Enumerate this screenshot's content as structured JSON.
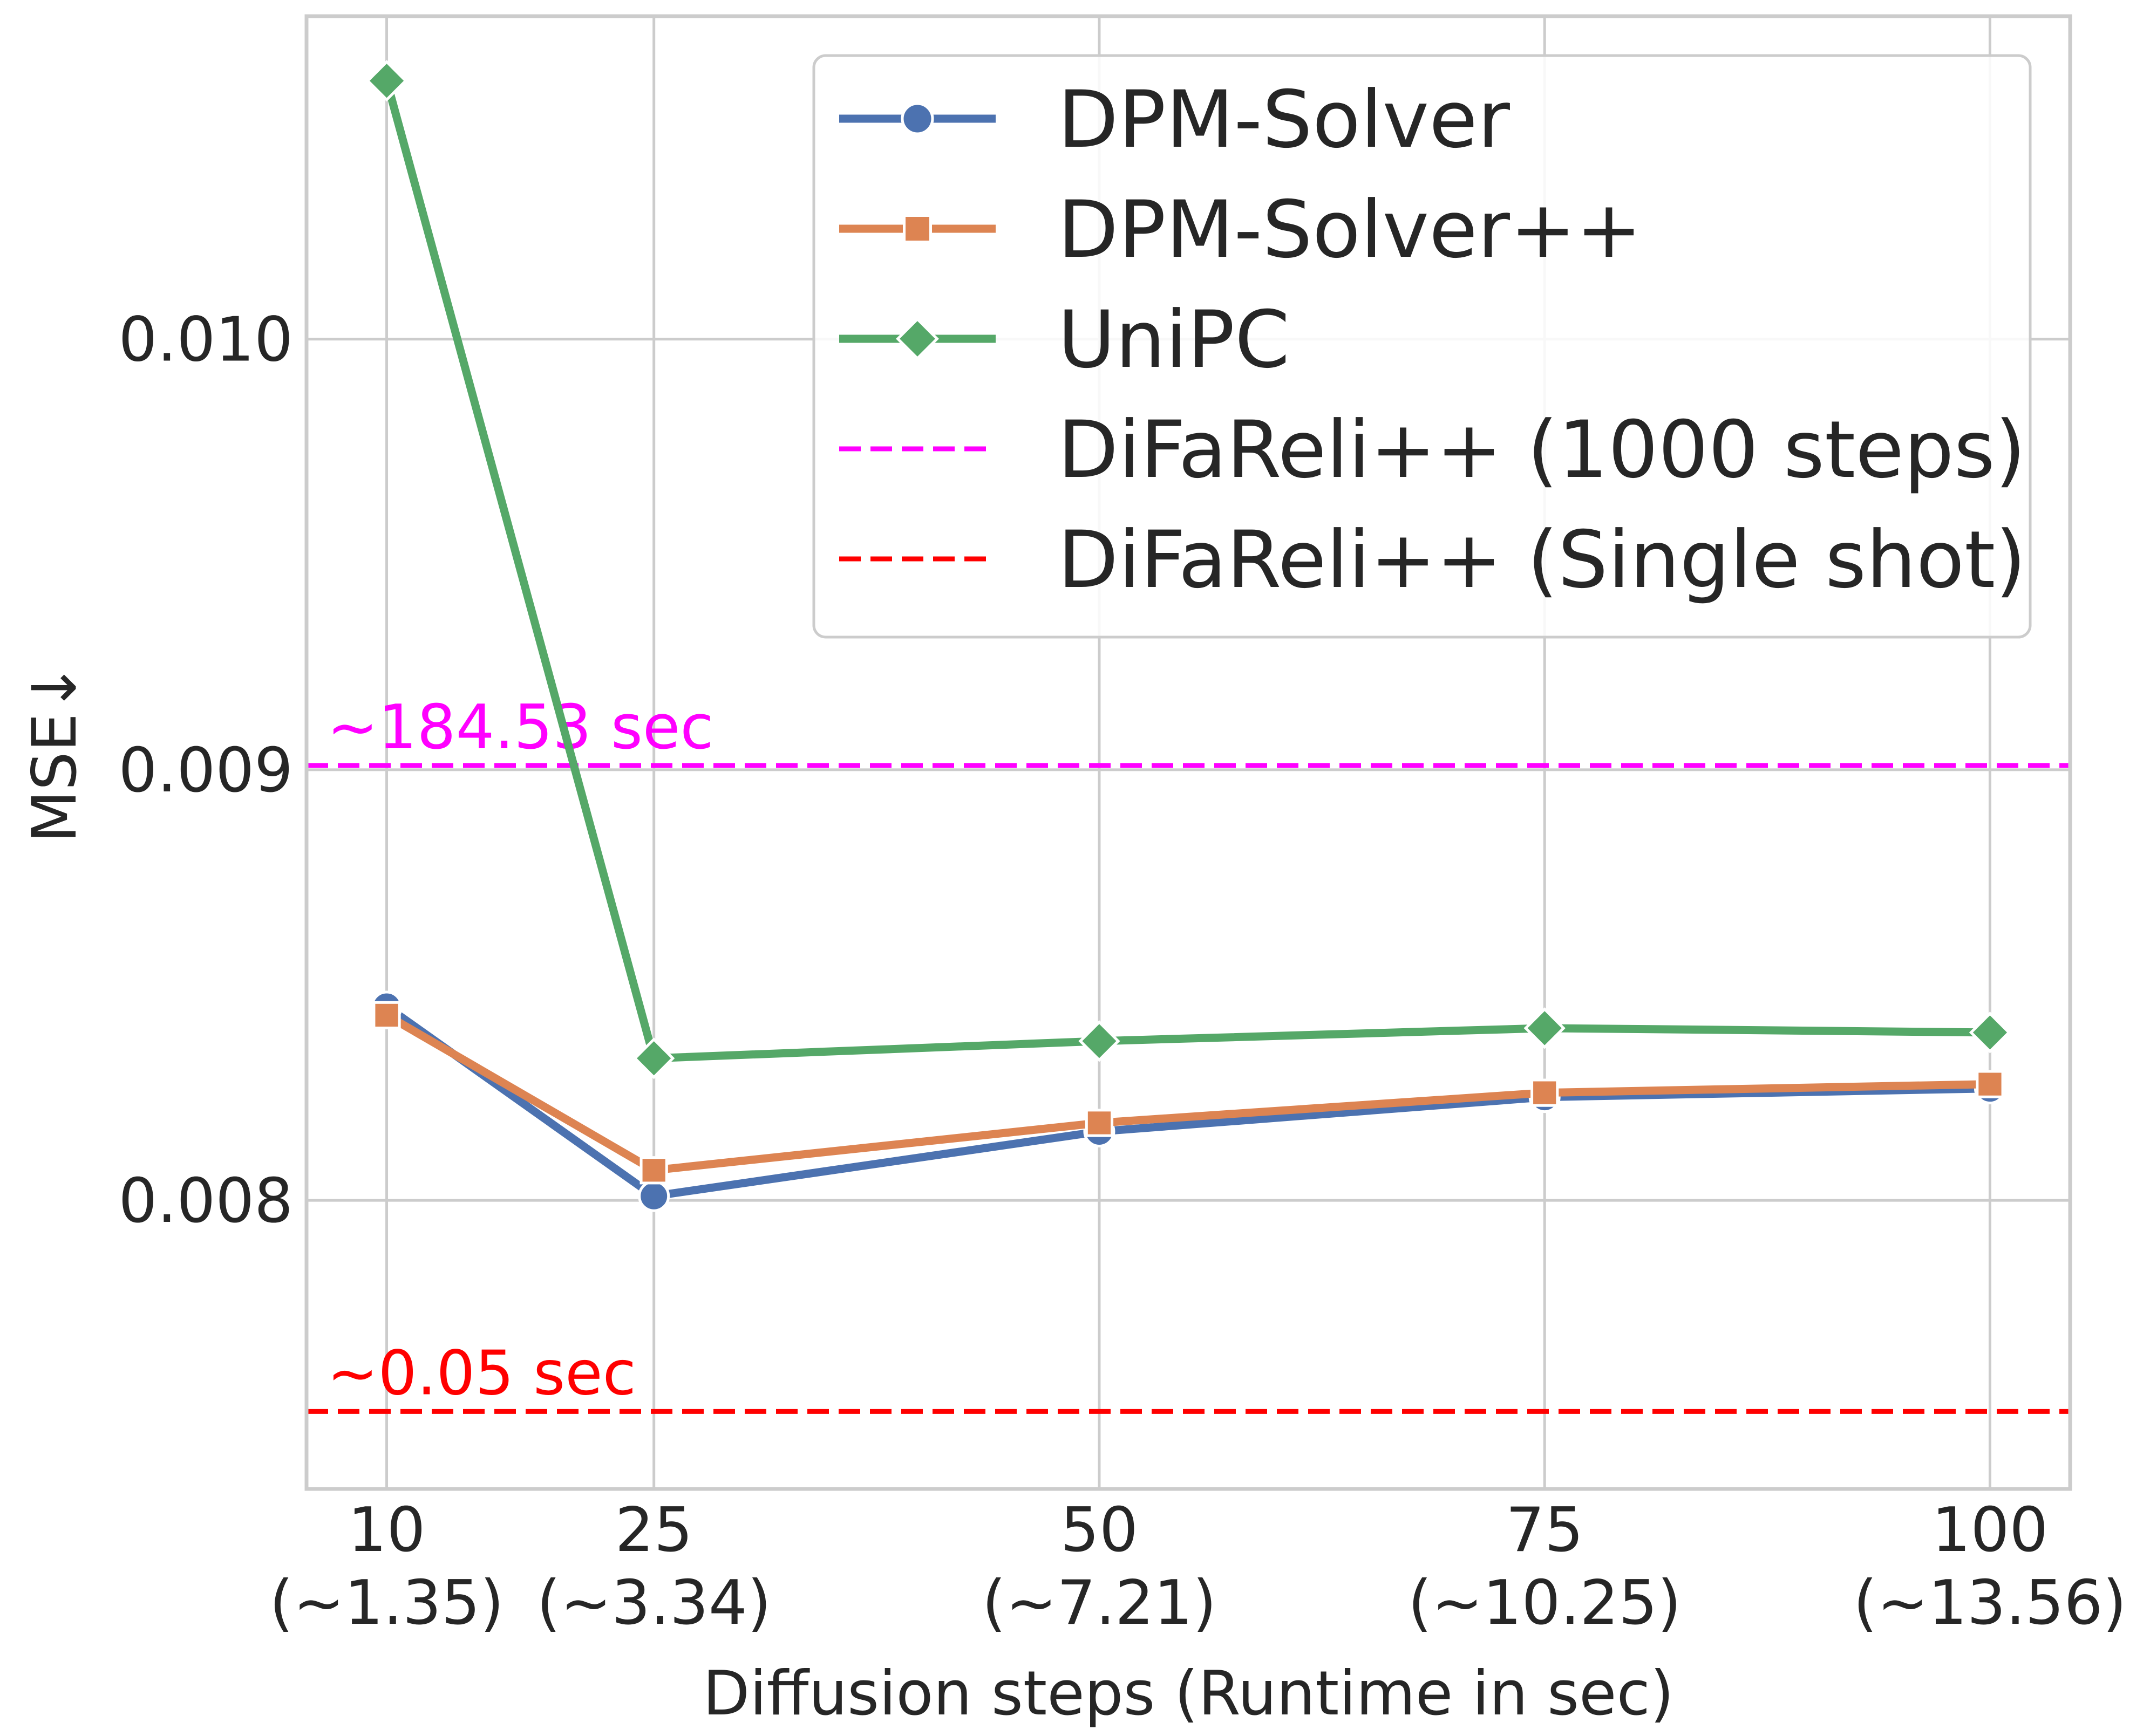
{
  "chart_data": {
    "type": "line",
    "title": "",
    "xlabel": "Diffusion steps (Runtime in sec)",
    "ylabel": "MSE↓",
    "x": [
      10,
      25,
      50,
      75,
      100
    ],
    "x_tick_labels": [
      {
        "steps": "10",
        "runtime": "(~1.35)"
      },
      {
        "steps": "25",
        "runtime": "(~3.34)"
      },
      {
        "steps": "50",
        "runtime": "(~7.21)"
      },
      {
        "steps": "75",
        "runtime": "(~10.25)"
      },
      {
        "steps": "100",
        "runtime": "(~13.56)"
      }
    ],
    "y_ticks": [
      "0.008",
      "0.009",
      "0.010"
    ],
    "ylim": [
      0.00733,
      0.01075
    ],
    "xlim": [
      5.5,
      104.5
    ],
    "grid": true,
    "legend_position": "top-right",
    "series": [
      {
        "name": "DPM-Solver",
        "marker": "circle",
        "color": "#4c72b0",
        "values": [
          0.00845,
          0.00801,
          0.00816,
          0.00824,
          0.00826
        ]
      },
      {
        "name": "DPM-Solver++",
        "marker": "square",
        "color": "#dd8452",
        "values": [
          0.00843,
          0.00807,
          0.00818,
          0.00825,
          0.00827
        ]
      },
      {
        "name": "UniPC",
        "marker": "diamond",
        "color": "#55a868",
        "values": [
          0.0106,
          0.00833,
          0.00837,
          0.0084,
          0.00839
        ]
      }
    ],
    "reference_lines": [
      {
        "name": "DiFaReli++ (1000 steps)",
        "value": 0.00901,
        "color": "#ff00ff",
        "annotation": "~184.53 sec"
      },
      {
        "name": "DiFaReli++ (Single shot)",
        "value": 0.00751,
        "color": "#ff0000",
        "annotation": "~0.05 sec"
      }
    ]
  }
}
